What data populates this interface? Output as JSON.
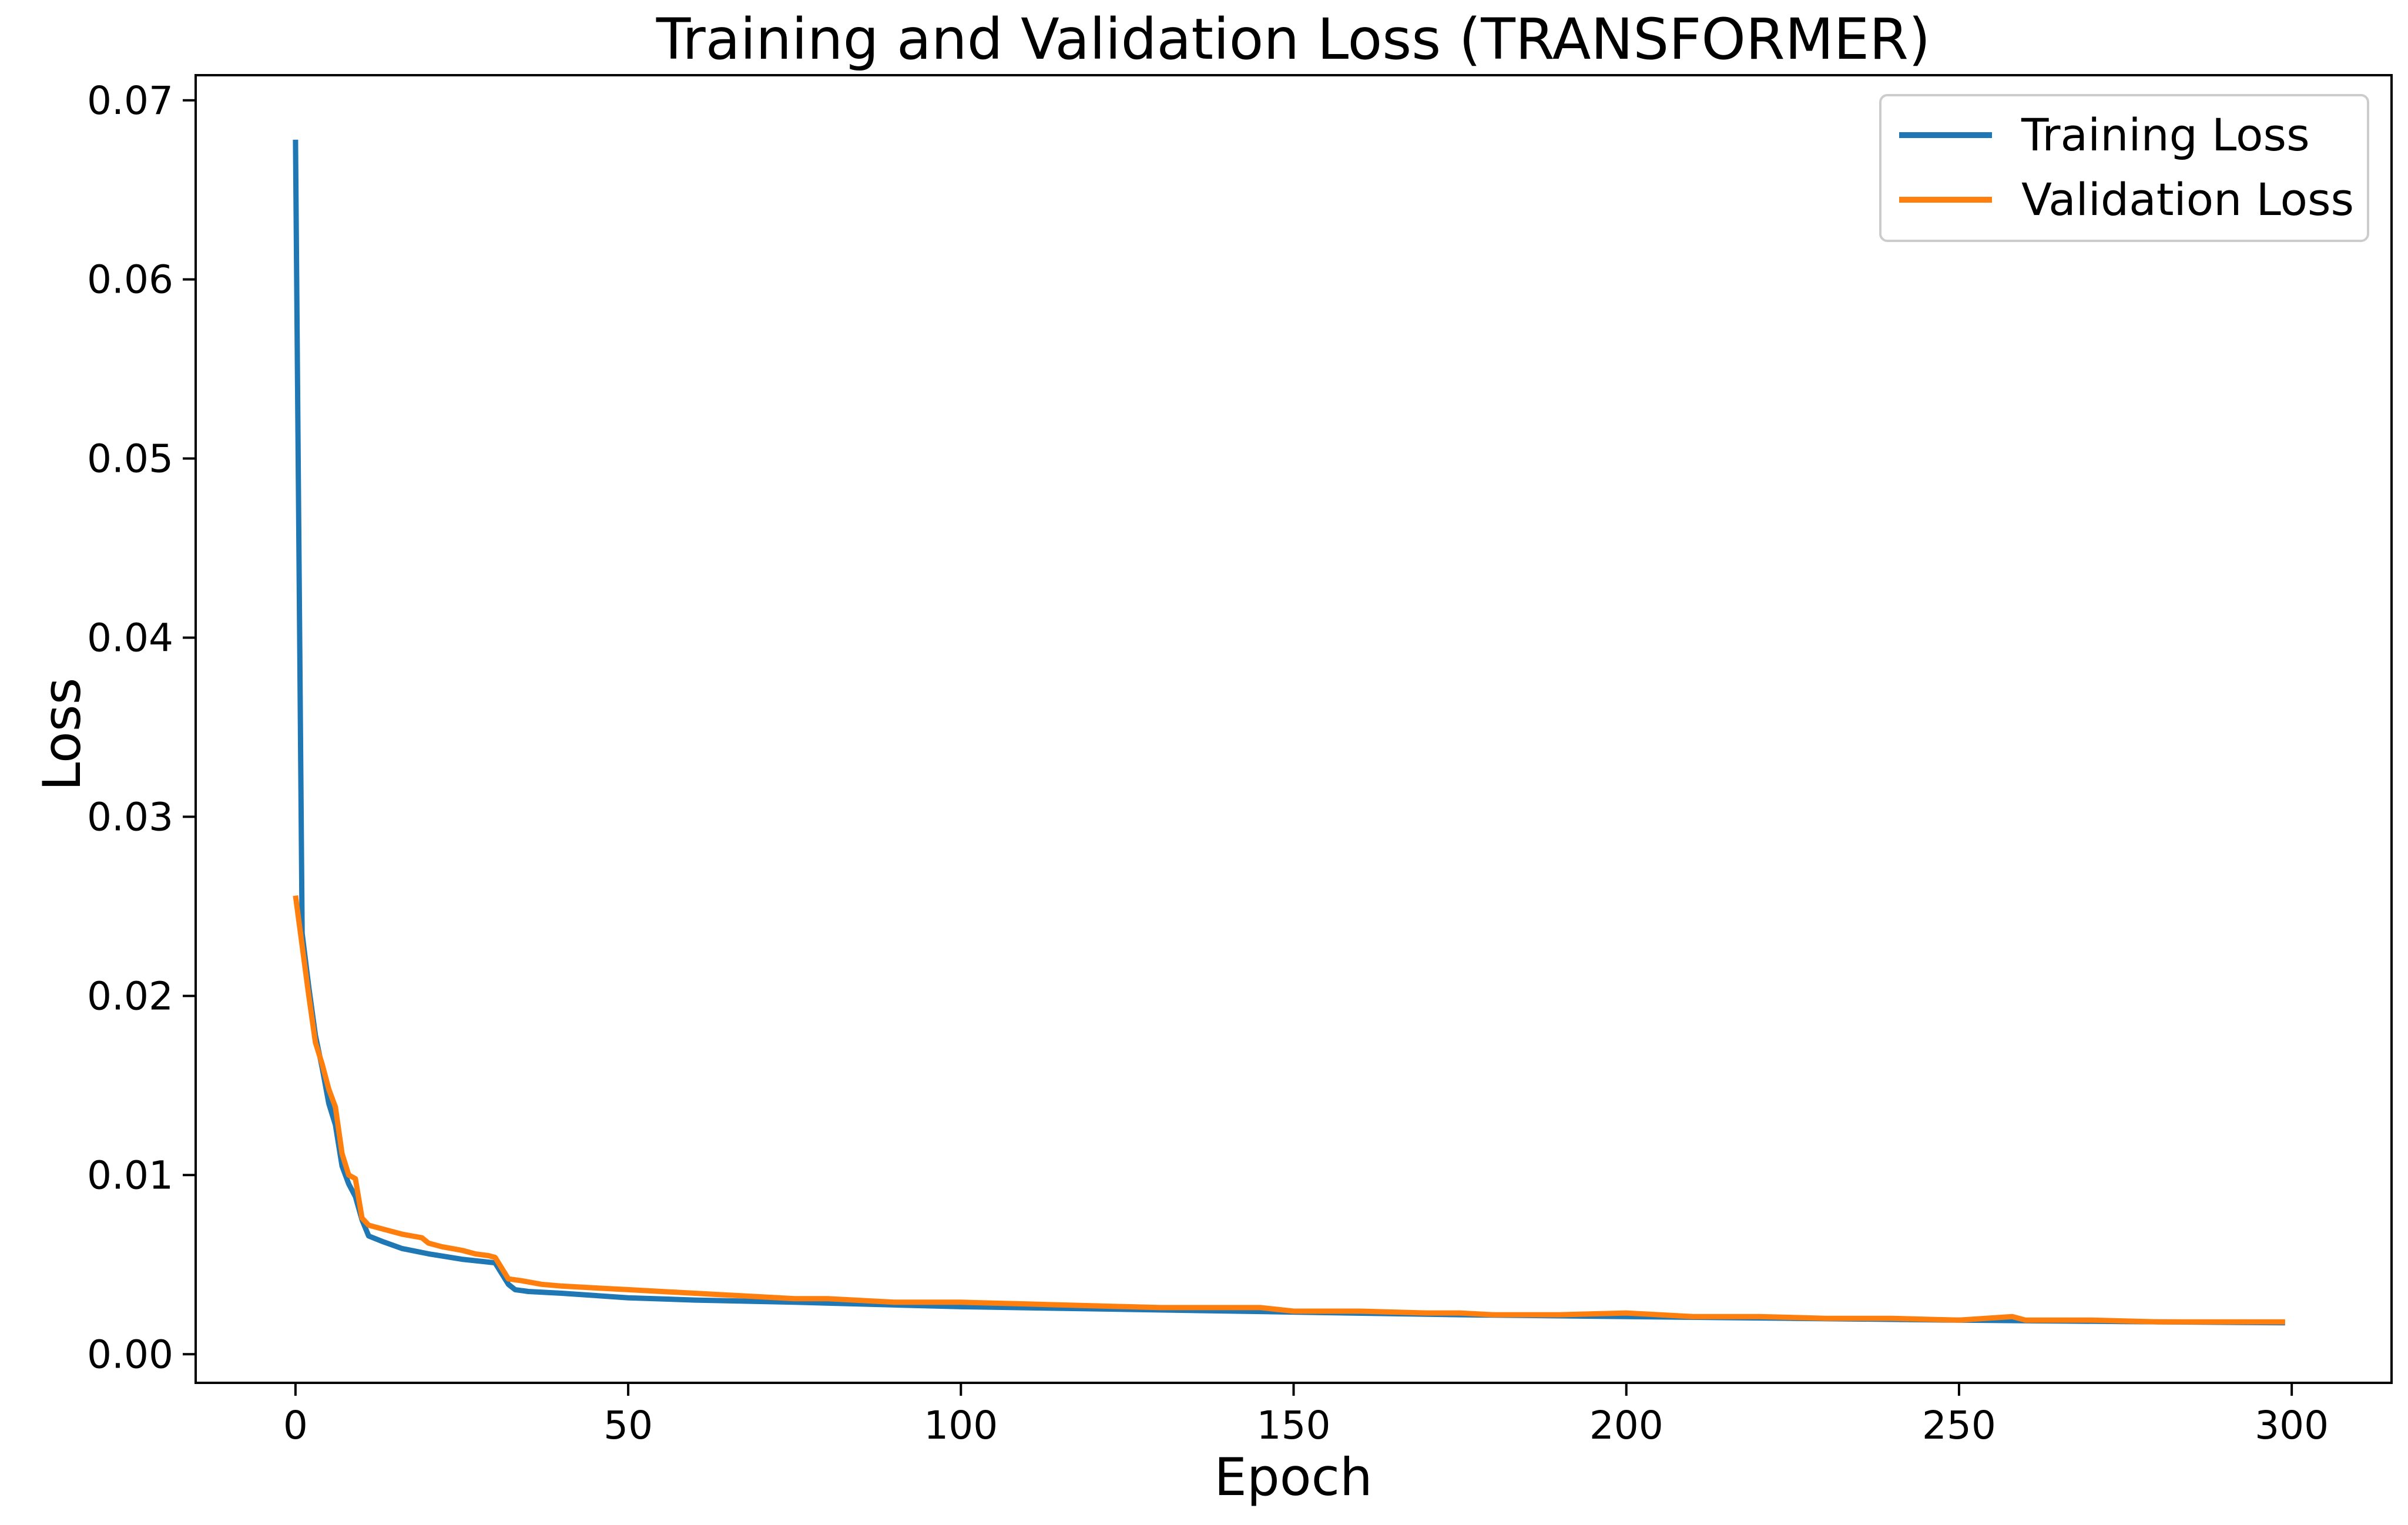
{
  "chart_data": {
    "type": "line",
    "title": "Training and Validation Loss (TRANSFORMER)",
    "xlabel": "Epoch",
    "ylabel": "Loss",
    "xlim": [
      -15,
      315
    ],
    "ylim": [
      -0.0016,
      0.0714
    ],
    "xticks": [
      0,
      50,
      100,
      150,
      200,
      250,
      300
    ],
    "yticks": [
      0.0,
      0.01,
      0.02,
      0.03,
      0.04,
      0.05,
      0.06,
      0.07
    ],
    "xtick_labels": [
      "0",
      "50",
      "100",
      "150",
      "200",
      "250",
      "300"
    ],
    "ytick_labels": [
      "0.00",
      "0.01",
      "0.02",
      "0.03",
      "0.04",
      "0.05",
      "0.06",
      "0.07"
    ],
    "grid": false,
    "legend": "top-right",
    "series": [
      {
        "name": "Training Loss",
        "color": "#1f77b4",
        "points": [
          [
            0,
            0.0678
          ],
          [
            1,
            0.0235
          ],
          [
            2,
            0.0205
          ],
          [
            3,
            0.0178
          ],
          [
            4,
            0.016
          ],
          [
            5,
            0.014
          ],
          [
            6,
            0.0128
          ],
          [
            7,
            0.0105
          ],
          [
            8,
            0.0095
          ],
          [
            9,
            0.0088
          ],
          [
            10,
            0.0075
          ],
          [
            11,
            0.0066
          ],
          [
            13,
            0.0063
          ],
          [
            16,
            0.0059
          ],
          [
            20,
            0.0056
          ],
          [
            25,
            0.0053
          ],
          [
            30,
            0.0051
          ],
          [
            31,
            0.0045
          ],
          [
            32,
            0.0039
          ],
          [
            33,
            0.0036
          ],
          [
            35,
            0.0035
          ],
          [
            40,
            0.0034
          ],
          [
            50,
            0.00315
          ],
          [
            60,
            0.00302
          ],
          [
            75,
            0.0029
          ],
          [
            90,
            0.00275
          ],
          [
            100,
            0.00265
          ],
          [
            125,
            0.0025
          ],
          [
            150,
            0.00235
          ],
          [
            175,
            0.0022
          ],
          [
            200,
            0.0021
          ],
          [
            225,
            0.002
          ],
          [
            250,
            0.0019
          ],
          [
            275,
            0.00182
          ],
          [
            299,
            0.00175
          ]
        ]
      },
      {
        "name": "Validation Loss",
        "color": "#ff7f0e",
        "points": [
          [
            0,
            0.0256
          ],
          [
            1,
            0.0228
          ],
          [
            2,
            0.02
          ],
          [
            3,
            0.0174
          ],
          [
            4,
            0.0162
          ],
          [
            5,
            0.0148
          ],
          [
            6,
            0.0138
          ],
          [
            7,
            0.0112
          ],
          [
            8,
            0.01
          ],
          [
            9,
            0.0098
          ],
          [
            10,
            0.0076
          ],
          [
            11,
            0.0072
          ],
          [
            13,
            0.007
          ],
          [
            16,
            0.0067
          ],
          [
            19,
            0.0065
          ],
          [
            20,
            0.0062
          ],
          [
            22,
            0.006
          ],
          [
            25,
            0.0058
          ],
          [
            27,
            0.0056
          ],
          [
            29,
            0.0055
          ],
          [
            30,
            0.0054
          ],
          [
            31,
            0.0048
          ],
          [
            32,
            0.0042
          ],
          [
            34,
            0.0041
          ],
          [
            37,
            0.0039
          ],
          [
            40,
            0.0038
          ],
          [
            45,
            0.0037
          ],
          [
            50,
            0.0036
          ],
          [
            55,
            0.0035
          ],
          [
            60,
            0.0034
          ],
          [
            65,
            0.0033
          ],
          [
            70,
            0.0032
          ],
          [
            75,
            0.0031
          ],
          [
            80,
            0.0031
          ],
          [
            85,
            0.003
          ],
          [
            90,
            0.0029
          ],
          [
            95,
            0.0029
          ],
          [
            100,
            0.0029
          ],
          [
            110,
            0.0028
          ],
          [
            120,
            0.0027
          ],
          [
            130,
            0.0026
          ],
          [
            140,
            0.0026
          ],
          [
            145,
            0.0026
          ],
          [
            150,
            0.0024
          ],
          [
            160,
            0.0024
          ],
          [
            170,
            0.0023
          ],
          [
            175,
            0.0023
          ],
          [
            180,
            0.0022
          ],
          [
            190,
            0.0022
          ],
          [
            200,
            0.0023
          ],
          [
            210,
            0.0021
          ],
          [
            220,
            0.0021
          ],
          [
            230,
            0.002
          ],
          [
            240,
            0.002
          ],
          [
            250,
            0.0019
          ],
          [
            258,
            0.0021
          ],
          [
            260,
            0.0019
          ],
          [
            270,
            0.0019
          ],
          [
            280,
            0.0018
          ],
          [
            290,
            0.0018
          ],
          [
            299,
            0.0018
          ]
        ]
      }
    ]
  }
}
